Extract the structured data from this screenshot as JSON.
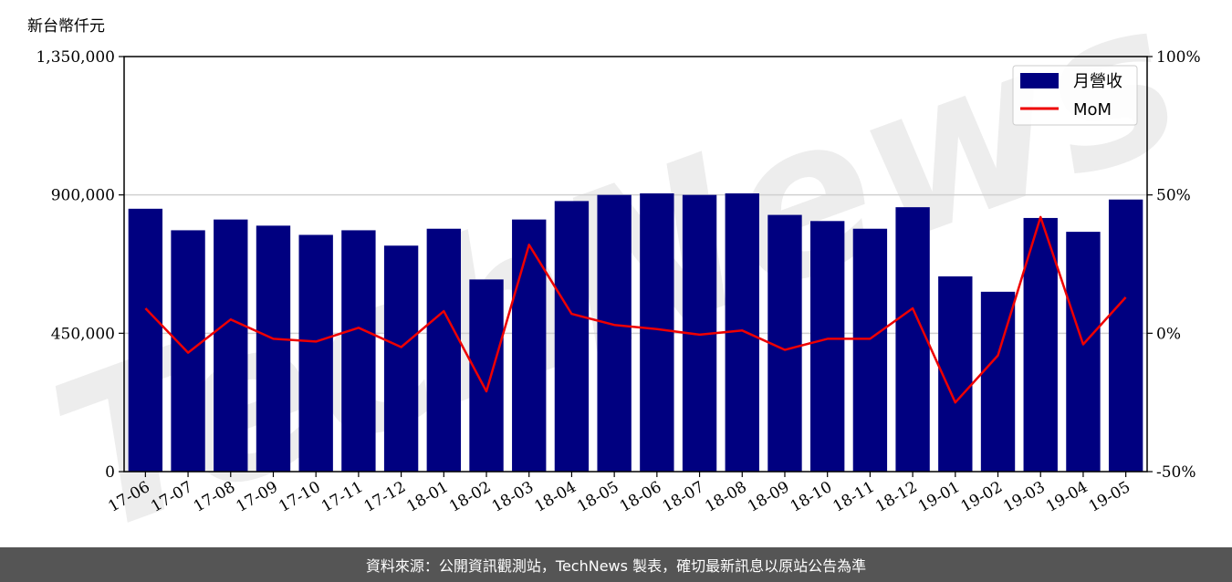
{
  "chart_data": {
    "type": "bar",
    "unit_label": "新台幣仟元",
    "categories": [
      "17-06",
      "17-07",
      "17-08",
      "17-09",
      "17-10",
      "17-11",
      "17-12",
      "18-01",
      "18-02",
      "18-03",
      "18-04",
      "18-05",
      "18-06",
      "18-07",
      "18-08",
      "18-09",
      "18-10",
      "18-11",
      "18-12",
      "19-01",
      "19-02",
      "19-03",
      "19-04",
      "19-05"
    ],
    "series": [
      {
        "name": "月營收",
        "type": "bar",
        "axis": "left",
        "color": "#000080",
        "values": [
          855000,
          785000,
          820000,
          800000,
          770000,
          785000,
          735000,
          790000,
          625000,
          820000,
          880000,
          900000,
          905000,
          900000,
          905000,
          835000,
          815000,
          790000,
          860000,
          635000,
          585000,
          825000,
          780000,
          885000
        ]
      },
      {
        "name": "MoM",
        "type": "line",
        "axis": "right",
        "color": "#ee0000",
        "values": [
          9,
          -7,
          5,
          -2,
          -3,
          2,
          -5,
          8,
          -21,
          32,
          7,
          3,
          1.5,
          -0.5,
          1,
          -6,
          -2,
          -2,
          9,
          -25,
          -8,
          42,
          -4,
          13
        ]
      }
    ],
    "left_axis": {
      "ylim": [
        0,
        1350000
      ],
      "ticks": [
        "0",
        "450,000",
        "900,000",
        "1,350,000"
      ]
    },
    "right_axis": {
      "ylim": [
        -50,
        100
      ],
      "ticks": [
        "-50%",
        "0%",
        "50%",
        "100%"
      ]
    },
    "grid": true,
    "legend_position": "top-right",
    "watermark": "TechNews"
  },
  "footer": {
    "source_note": "資料來源：公開資訊觀測站，TechNews 製表，確切最新訊息以原站公告為準"
  }
}
